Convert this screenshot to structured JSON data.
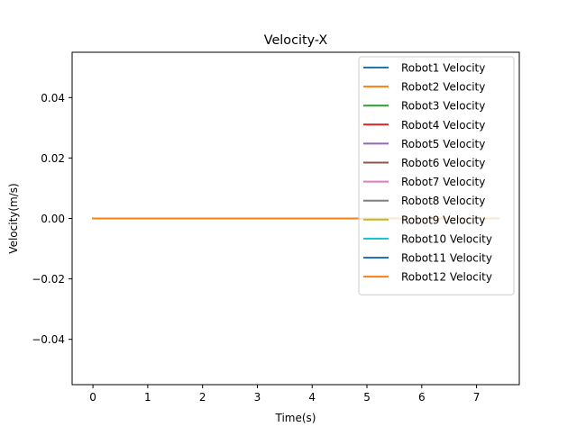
{
  "chart_data": {
    "type": "line",
    "title": "Velocity-X",
    "xlabel": "Time(s)",
    "ylabel": "Velocity(m/s)",
    "xlim": [
      -0.38,
      7.78
    ],
    "ylim": [
      -0.055,
      0.055
    ],
    "xticks": [
      0,
      1,
      2,
      3,
      4,
      5,
      6,
      7
    ],
    "xtick_labels": [
      "0",
      "1",
      "2",
      "3",
      "4",
      "5",
      "6",
      "7"
    ],
    "yticks": [
      -0.04,
      -0.02,
      0.0,
      0.02,
      0.04
    ],
    "ytick_labels": [
      "−0.04",
      "−0.02",
      "0.00",
      "0.02",
      "0.04"
    ],
    "grid": false,
    "legend_position": "top-right",
    "x": [
      0,
      7.4
    ],
    "series": [
      {
        "name": "Robot1 Velocity",
        "color": "#1f77b4",
        "values": [
          0,
          0
        ]
      },
      {
        "name": "Robot2 Velocity",
        "color": "#ff7f0e",
        "values": [
          0,
          0
        ]
      },
      {
        "name": "Robot3 Velocity",
        "color": "#2ca02c",
        "values": [
          0,
          0
        ]
      },
      {
        "name": "Robot4 Velocity",
        "color": "#d62728",
        "values": [
          0,
          0
        ]
      },
      {
        "name": "Robot5 Velocity",
        "color": "#9467bd",
        "values": [
          0,
          0
        ]
      },
      {
        "name": "Robot6 Velocity",
        "color": "#8c564b",
        "values": [
          0,
          0
        ]
      },
      {
        "name": "Robot7 Velocity",
        "color": "#e377c2",
        "values": [
          0,
          0
        ]
      },
      {
        "name": "Robot8 Velocity",
        "color": "#7f7f7f",
        "values": [
          0,
          0
        ]
      },
      {
        "name": "Robot9 Velocity",
        "color": "#bcbd22",
        "values": [
          0,
          0
        ]
      },
      {
        "name": "Robot10 Velocity",
        "color": "#17becf",
        "values": [
          0,
          0
        ]
      },
      {
        "name": "Robot11 Velocity",
        "color": "#1f77b4",
        "values": [
          0,
          0
        ]
      },
      {
        "name": "Robot12 Velocity",
        "color": "#ff7f0e",
        "values": [
          0,
          0
        ]
      }
    ]
  }
}
